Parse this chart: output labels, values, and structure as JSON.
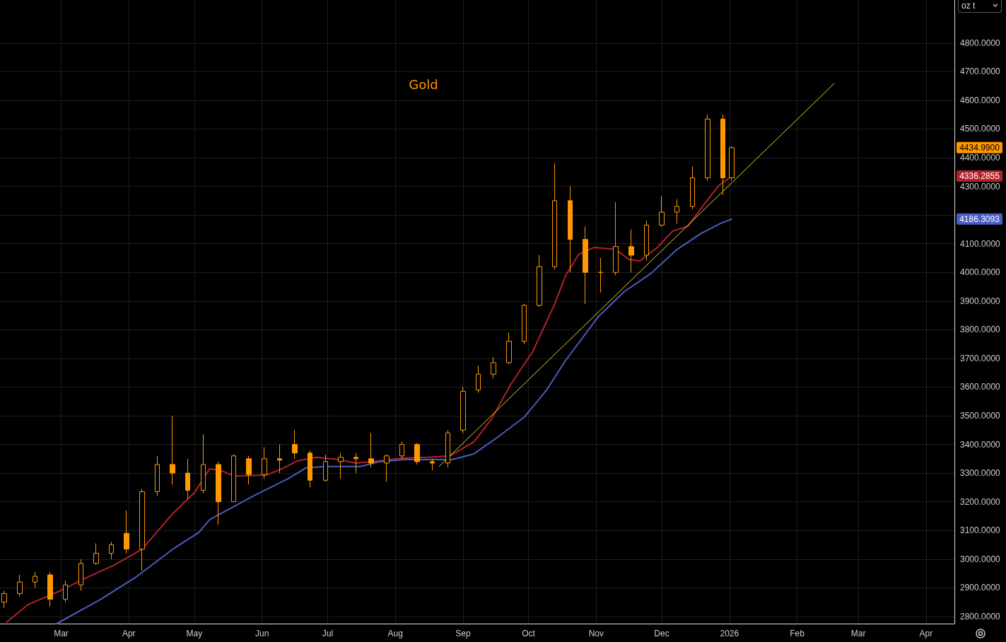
{
  "chart_data": {
    "type": "candlestick",
    "title": "Gold",
    "x": [
      "2025-02-03",
      "2025-02-10",
      "2025-02-17",
      "2025-02-24",
      "2025-03-03",
      "2025-03-10",
      "2025-03-17",
      "2025-03-24",
      "2025-03-31",
      "2025-04-07",
      "2025-04-14",
      "2025-04-21",
      "2025-04-28",
      "2025-05-05",
      "2025-05-12",
      "2025-05-19",
      "2025-05-26",
      "2025-06-02",
      "2025-06-09",
      "2025-06-16",
      "2025-06-23",
      "2025-06-30",
      "2025-07-07",
      "2025-07-14",
      "2025-07-21",
      "2025-07-28",
      "2025-08-04",
      "2025-08-11",
      "2025-08-18",
      "2025-08-25",
      "2025-09-01",
      "2025-09-08",
      "2025-09-15",
      "2025-09-22",
      "2025-09-29",
      "2025-10-06",
      "2025-10-13",
      "2025-10-20",
      "2025-10-27",
      "2025-11-03",
      "2025-11-10",
      "2025-11-17",
      "2025-11-24",
      "2025-12-01",
      "2025-12-08",
      "2025-12-15",
      "2025-12-22",
      "2025-12-29",
      "2026-01-02"
    ],
    "series": [
      {
        "color": "#ff9800",
        "ohlc": [
          [
            2850,
            2890,
            2830,
            2880
          ],
          [
            2880,
            2945,
            2870,
            2920
          ],
          [
            2920,
            2955,
            2900,
            2940
          ],
          [
            2945,
            2955,
            2835,
            2860
          ],
          [
            2860,
            2925,
            2850,
            2910
          ],
          [
            2910,
            3000,
            2890,
            2985
          ],
          [
            2985,
            3055,
            2980,
            3020
          ],
          [
            3020,
            3060,
            3000,
            3050
          ],
          [
            3090,
            3170,
            3020,
            3035
          ],
          [
            3035,
            3245,
            2960,
            3235
          ],
          [
            3235,
            3360,
            3220,
            3330
          ],
          [
            3330,
            3500,
            3260,
            3300
          ],
          [
            3300,
            3350,
            3210,
            3240
          ],
          [
            3240,
            3435,
            3230,
            3330
          ],
          [
            3330,
            3340,
            3120,
            3200
          ],
          [
            3200,
            3365,
            3200,
            3360
          ],
          [
            3350,
            3360,
            3260,
            3295
          ],
          [
            3295,
            3390,
            3280,
            3350
          ],
          [
            3350,
            3400,
            3300,
            3345
          ],
          [
            3400,
            3450,
            3350,
            3370
          ],
          [
            3370,
            3380,
            3250,
            3275
          ],
          [
            3275,
            3365,
            3270,
            3340
          ],
          [
            3340,
            3370,
            3280,
            3355
          ],
          [
            3355,
            3370,
            3300,
            3350
          ],
          [
            3350,
            3440,
            3320,
            3335
          ],
          [
            3335,
            3365,
            3270,
            3360
          ],
          [
            3360,
            3410,
            3350,
            3400
          ],
          [
            3400,
            3405,
            3330,
            3340
          ],
          [
            3340,
            3350,
            3310,
            3335
          ],
          [
            3335,
            3450,
            3320,
            3440
          ],
          [
            3450,
            3600,
            3440,
            3585
          ],
          [
            3590,
            3675,
            3580,
            3645
          ],
          [
            3645,
            3705,
            3630,
            3685
          ],
          [
            3685,
            3790,
            3680,
            3760
          ],
          [
            3760,
            3890,
            3750,
            3885
          ],
          [
            3885,
            4060,
            3880,
            4020
          ],
          [
            4020,
            4380,
            4010,
            4250
          ],
          [
            4250,
            4300,
            4000,
            4115
          ],
          [
            4115,
            4160,
            3890,
            4000
          ],
          [
            4000,
            4050,
            3930,
            4000
          ],
          [
            4000,
            4245,
            3990,
            4090
          ],
          [
            4090,
            4150,
            4000,
            4060
          ],
          [
            4060,
            4180,
            4040,
            4165
          ],
          [
            4165,
            4265,
            4160,
            4210
          ],
          [
            4210,
            4255,
            4170,
            4230
          ],
          [
            4230,
            4370,
            4220,
            4330
          ],
          [
            4330,
            4550,
            4320,
            4535
          ],
          [
            4535,
            4550,
            4270,
            4330
          ],
          [
            4330,
            4440,
            4320,
            4434.99
          ]
        ]
      },
      {
        "type": "line",
        "color": "#b2222a",
        "x": [
          "2025-02-04",
          "2025-02-14",
          "2025-03-01",
          "2025-03-12",
          "2025-03-25",
          "2025-04-07",
          "2025-04-21",
          "2025-05-01",
          "2025-05-08",
          "2025-05-13",
          "2025-05-19",
          "2025-06-03",
          "2025-06-10",
          "2025-06-17",
          "2025-06-26",
          "2025-07-06",
          "2025-07-14",
          "2025-07-24",
          "2025-08-04",
          "2025-08-16",
          "2025-08-26",
          "2025-09-06",
          "2025-09-14",
          "2025-09-23",
          "2025-10-03",
          "2025-10-13",
          "2025-10-18",
          "2025-10-24",
          "2025-10-31",
          "2025-11-10",
          "2025-11-16",
          "2025-11-21",
          "2025-11-29",
          "2025-12-06",
          "2025-12-13",
          "2025-12-21",
          "2025-12-27",
          "2026-01-02"
        ],
        "values": [
          2780,
          2842,
          2891,
          2933,
          2978,
          3034,
          3158,
          3232,
          3315,
          3310,
          3290,
          3293,
          3315,
          3342,
          3355,
          3347,
          3335,
          3342,
          3352,
          3355,
          3360,
          3409,
          3488,
          3611,
          3725,
          3890,
          3989,
          4063,
          4087,
          4080,
          4045,
          4040,
          4087,
          4144,
          4161,
          4243,
          4302,
          4336
        ]
      },
      {
        "type": "line",
        "color": "#4a5bc4",
        "x": [
          "2025-02-27",
          "2025-03-19",
          "2025-04-04",
          "2025-04-21",
          "2025-05-03",
          "2025-05-08",
          "2025-05-29",
          "2025-06-13",
          "2025-06-21",
          "2025-06-30",
          "2025-07-16",
          "2025-07-25",
          "2025-08-05",
          "2025-08-27",
          "2025-09-06",
          "2025-09-17",
          "2025-09-29",
          "2025-10-09",
          "2025-10-18",
          "2025-11-02",
          "2025-11-14",
          "2025-11-26",
          "2025-12-08",
          "2025-12-19",
          "2025-12-28",
          "2026-01-02"
        ],
        "values": [
          2775,
          2859,
          2936,
          3034,
          3093,
          3138,
          3224,
          3281,
          3318,
          3323,
          3323,
          3340,
          3347,
          3347,
          3367,
          3426,
          3495,
          3587,
          3693,
          3846,
          3934,
          3996,
          4080,
          4136,
          4171,
          4186
        ]
      },
      {
        "type": "line",
        "color": "#e8d82c",
        "x": [
          "2025-08-21",
          "2026-02-18"
        ],
        "values": [
          3323,
          4659
        ]
      }
    ],
    "xlim": [
      "2025-02-01",
      "2026-04-14"
    ],
    "xticks": [
      {
        "value": "2025-03-01",
        "label": "Mar"
      },
      {
        "value": "2025-04-01",
        "label": "Apr"
      },
      {
        "value": "2025-05-01",
        "label": "May"
      },
      {
        "value": "2025-06-01",
        "label": "Jun"
      },
      {
        "value": "2025-07-01",
        "label": "Jul"
      },
      {
        "value": "2025-08-01",
        "label": "Aug"
      },
      {
        "value": "2025-09-01",
        "label": "Sep"
      },
      {
        "value": "2025-10-01",
        "label": "Oct"
      },
      {
        "value": "2025-11-01",
        "label": "Nov"
      },
      {
        "value": "2025-12-01",
        "label": "Dec"
      },
      {
        "value": "2026-01-01",
        "label": "2026"
      },
      {
        "value": "2026-02-01",
        "label": "Feb"
      },
      {
        "value": "2026-03-01",
        "label": "Mar"
      },
      {
        "value": "2026-04-01",
        "label": "Apr"
      }
    ],
    "ylim": [
      2775,
      4950
    ],
    "yticks": [
      {
        "value": 2800,
        "label": "2800.0000"
      },
      {
        "value": 2900,
        "label": "2900.0000"
      },
      {
        "value": 3000,
        "label": "3000.0000"
      },
      {
        "value": 3100,
        "label": "3100.0000"
      },
      {
        "value": 3200,
        "label": "3200.0000"
      },
      {
        "value": 3300,
        "label": "3300.0000"
      },
      {
        "value": 3400,
        "label": "3400.0000"
      },
      {
        "value": 3500,
        "label": "3500.0000"
      },
      {
        "value": 3600,
        "label": "3600.0000"
      },
      {
        "value": 3700,
        "label": "3700.0000"
      },
      {
        "value": 3800,
        "label": "3800.0000"
      },
      {
        "value": 3900,
        "label": "3900.0000"
      },
      {
        "value": 4000,
        "label": "4000.0000"
      },
      {
        "value": 4100,
        "label": "4100.0000"
      },
      {
        "value": 4200,
        "label": null
      },
      {
        "value": 4300,
        "label": "4300.0000"
      },
      {
        "value": 4400,
        "label": "4400.0000"
      },
      {
        "value": 4500,
        "label": "4500.0000"
      },
      {
        "value": 4600,
        "label": "4600.0000"
      },
      {
        "value": 4700,
        "label": "4700.0000"
      },
      {
        "value": 4800,
        "label": "4800.0000"
      }
    ],
    "annotations": [
      "oz t",
      "4434.9900",
      "4336.2855",
      "4186.3093"
    ],
    "grid": true,
    "marker": "none",
    "line_style": "solid"
  }
}
